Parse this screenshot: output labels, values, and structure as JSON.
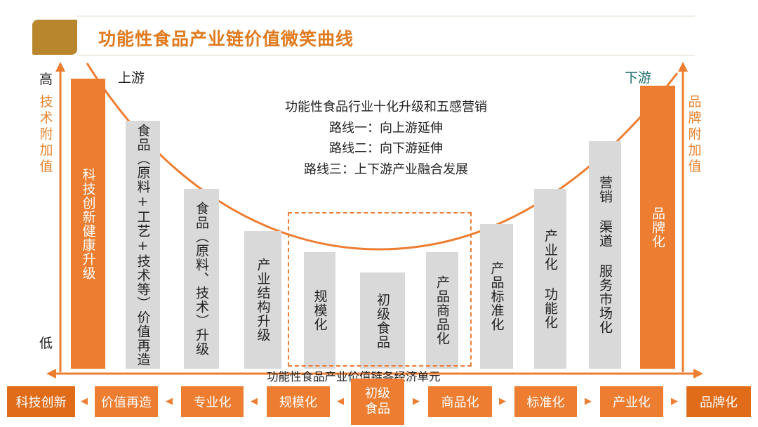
{
  "header": {
    "title": "功能性食品产业链价值微笑曲线"
  },
  "axis": {
    "high_label": "高",
    "low_label": "低",
    "left_side_label": "技术附加值",
    "right_side_label": "品牌附加值",
    "upstream_label": "上游",
    "downstream_label": "下游",
    "baseline_caption": "功能性食品产业价值链各经济单元"
  },
  "routes": {
    "line1": "功能性食品行业十化升级和五感营销",
    "line2": "路线一：向上游延伸",
    "line3": "路线二：向下游延伸",
    "line4": "路线三：上下游产业融合发展"
  },
  "bars": [
    {
      "label": "科技创新健康升级",
      "color": "orange",
      "level": 0.97
    },
    {
      "label": "食品（原料+工艺+技术等）价值再造",
      "color": "gray",
      "level": 0.85
    },
    {
      "label": "食品（原料、技术）升级",
      "color": "gray",
      "level": 0.62
    },
    {
      "label": "产业结构升级",
      "color": "gray",
      "level": 0.47
    },
    {
      "label": "规模化",
      "color": "gray",
      "level": 0.4
    },
    {
      "label": "初级食品",
      "color": "gray",
      "level": 0.33
    },
    {
      "label": "产品商品化",
      "color": "gray",
      "level": 0.4
    },
    {
      "label": "产品标准化",
      "color": "gray",
      "level": 0.5
    },
    {
      "label": "产业化 功能化",
      "color": "gray",
      "level": 0.63
    },
    {
      "label": "营销 渠道 服务市场化",
      "color": "gray",
      "level": 0.8
    },
    {
      "label": "品牌化",
      "color": "orange",
      "level": 0.96
    }
  ],
  "chain": {
    "items": [
      "科技创新",
      "价值再造",
      "专业化",
      "规模化",
      "初级食品",
      "商品化",
      "标准化",
      "产业化",
      "品牌化"
    ],
    "center_line1": "初级",
    "center_line2": "食品",
    "arrow_left": "◀",
    "arrow_right": "▶"
  },
  "colors": {
    "accent": "#ed7d31",
    "title": "#e07a1f",
    "gray_bar": "#d9d9d9",
    "header_box": "#b8862c",
    "downstream_text": "#1d6f6f"
  }
}
